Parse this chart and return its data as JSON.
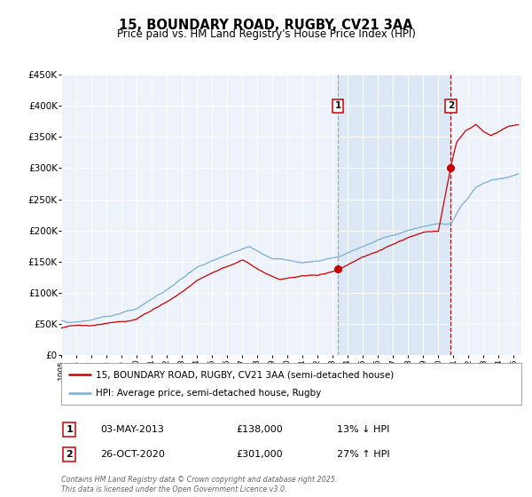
{
  "title": "15, BOUNDARY ROAD, RUGBY, CV21 3AA",
  "subtitle": "Price paid vs. HM Land Registry's House Price Index (HPI)",
  "ylim": [
    0,
    450000
  ],
  "yticks": [
    0,
    50000,
    100000,
    150000,
    200000,
    250000,
    300000,
    350000,
    400000,
    450000
  ],
  "ytick_labels": [
    "£0",
    "£50K",
    "£100K",
    "£150K",
    "£200K",
    "£250K",
    "£300K",
    "£350K",
    "£400K",
    "£450K"
  ],
  "xlim_start": 1995.0,
  "xlim_end": 2025.5,
  "xticks": [
    1995,
    1996,
    1997,
    1998,
    1999,
    2000,
    2001,
    2002,
    2003,
    2004,
    2005,
    2006,
    2007,
    2008,
    2009,
    2010,
    2011,
    2012,
    2013,
    2014,
    2015,
    2016,
    2017,
    2018,
    2019,
    2020,
    2021,
    2022,
    2023,
    2024,
    2025
  ],
  "property_color": "#cc0000",
  "hpi_color": "#7bafd4",
  "sale1_x": 2013.34,
  "sale1_y": 138000,
  "sale1_label": "1",
  "sale1_date": "03-MAY-2013",
  "sale1_price": "£138,000",
  "sale1_hpi": "13% ↓ HPI",
  "sale2_x": 2020.82,
  "sale2_y": 301000,
  "sale2_label": "2",
  "sale2_date": "26-OCT-2020",
  "sale2_price": "£301,000",
  "sale2_hpi": "27% ↑ HPI",
  "legend_label1": "15, BOUNDARY ROAD, RUGBY, CV21 3AA (semi-detached house)",
  "legend_label2": "HPI: Average price, semi-detached house, Rugby",
  "footer": "Contains HM Land Registry data © Crown copyright and database right 2025.\nThis data is licensed under the Open Government Licence v3.0.",
  "background_color": "#ffffff",
  "plot_bg_color": "#eef2fa",
  "grid_color": "#ffffff",
  "shade_color": "#dce8f5"
}
